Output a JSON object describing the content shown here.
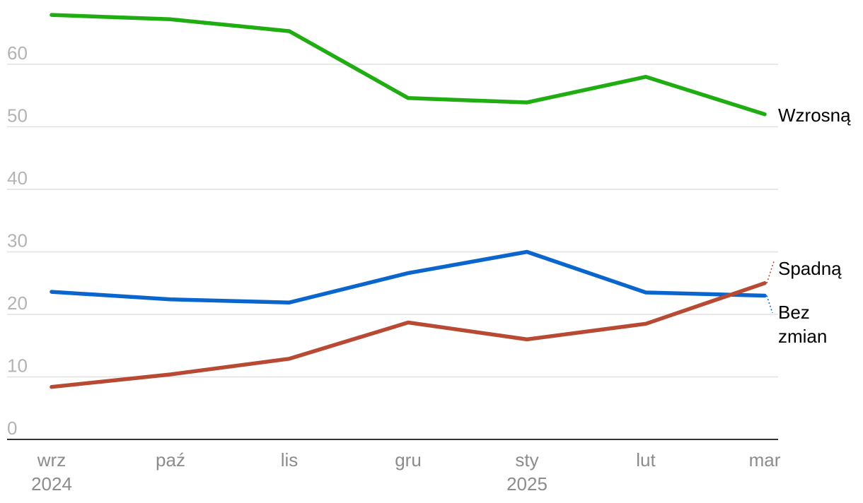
{
  "chart_data": {
    "type": "line",
    "title": "",
    "xlabel": "",
    "ylabel": "",
    "categories": [
      "wrz",
      "paź",
      "lis",
      "gru",
      "sty",
      "lut",
      "mar"
    ],
    "year_labels": [
      {
        "index": 0,
        "label": "2024"
      },
      {
        "index": 4,
        "label": "2025"
      }
    ],
    "y_ticks": [
      0,
      10,
      20,
      30,
      40,
      50,
      60
    ],
    "ylim": [
      0,
      68
    ],
    "grid": true,
    "legend": "inline-right",
    "series": [
      {
        "name": "Wzrosną",
        "color": "#1fad12",
        "values": [
          67.9,
          67.2,
          65.3,
          54.6,
          53.9,
          58.0,
          52.0
        ]
      },
      {
        "name": "Bez zmian",
        "color": "#0a66cc",
        "values": [
          23.6,
          22.4,
          21.9,
          26.6,
          30.0,
          23.5,
          23.0
        ]
      },
      {
        "name": "Spadną",
        "color": "#b84a34",
        "values": [
          8.4,
          10.4,
          12.9,
          18.7,
          16.0,
          18.5,
          25.0
        ]
      }
    ]
  }
}
